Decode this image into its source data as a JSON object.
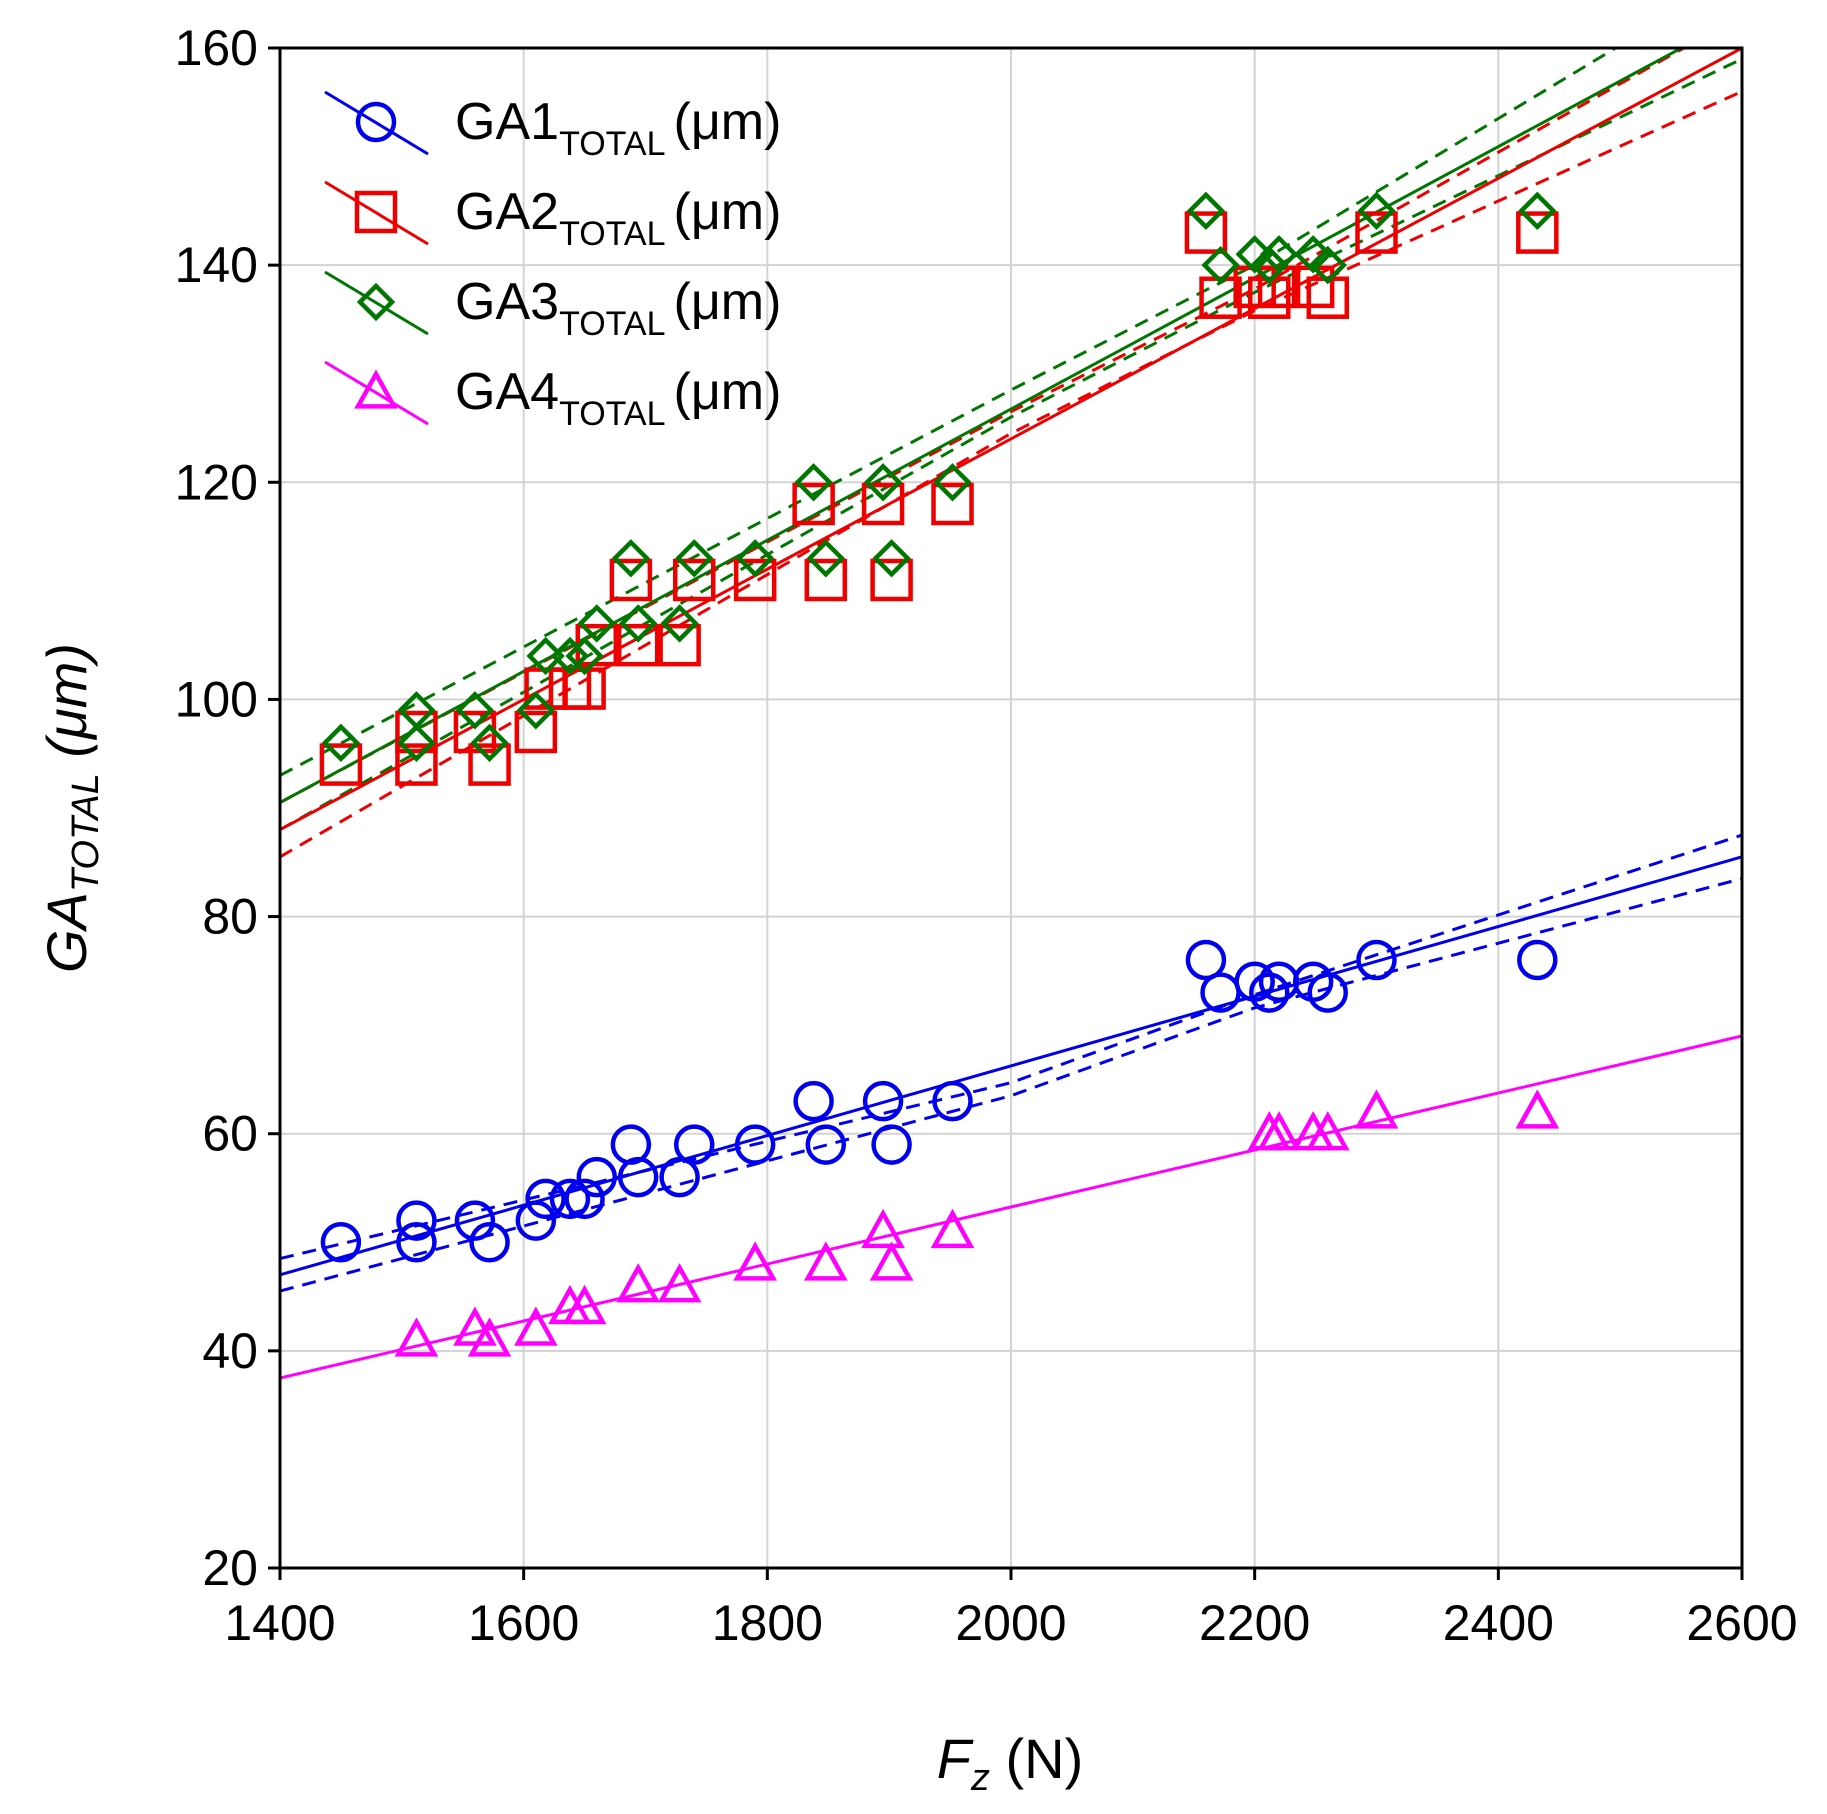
{
  "chart_data": {
    "type": "scatter",
    "xlabel": {
      "main": "F",
      "sub": "z",
      "unit": " (N)"
    },
    "ylabel": {
      "main": "GA",
      "sub": "TOTAL",
      "unit": " (μm)"
    },
    "xlim": [
      1400,
      2600
    ],
    "ylim": [
      20,
      160
    ],
    "xticks": [
      1400,
      1600,
      1800,
      2000,
      2200,
      2400,
      2600
    ],
    "yticks": [
      20,
      40,
      60,
      80,
      100,
      120,
      140,
      160
    ],
    "grid": true,
    "legend_position": "top-left",
    "series": [
      {
        "id": "ga1",
        "label_main": "GA1",
        "label_sub": "TOTAL",
        "label_unit": "(μm)",
        "marker": "circle",
        "color": "#0000ee",
        "fit": {
          "y_at_xmin": 47,
          "y_at_xmax": 85.5
        },
        "ci": true,
        "ci_lower": [
          [
            1400,
            45.5
          ],
          [
            2000,
            63.5
          ],
          [
            2200,
            71.6
          ],
          [
            2600,
            83.5
          ]
        ],
        "ci_upper": [
          [
            1400,
            48.5
          ],
          [
            2000,
            64.7
          ],
          [
            2200,
            72.8
          ],
          [
            2600,
            87.5
          ]
        ],
        "points": [
          [
            1450,
            50
          ],
          [
            1512,
            52
          ],
          [
            1512,
            50
          ],
          [
            1560,
            52
          ],
          [
            1572,
            50
          ],
          [
            1610,
            52
          ],
          [
            1618,
            54
          ],
          [
            1638,
            54
          ],
          [
            1650,
            54
          ],
          [
            1660,
            56
          ],
          [
            1688,
            59
          ],
          [
            1694,
            56
          ],
          [
            1728,
            56
          ],
          [
            1740,
            59
          ],
          [
            1790,
            59
          ],
          [
            1838,
            63
          ],
          [
            1848,
            59
          ],
          [
            1895,
            63
          ],
          [
            1902,
            59
          ],
          [
            1952,
            63
          ],
          [
            2160,
            76
          ],
          [
            2172,
            73
          ],
          [
            2200,
            74
          ],
          [
            2212,
            73
          ],
          [
            2220,
            74
          ],
          [
            2248,
            74
          ],
          [
            2260,
            73
          ],
          [
            2300,
            76
          ],
          [
            2432,
            76
          ]
        ]
      },
      {
        "id": "ga2",
        "label_main": "GA2",
        "label_sub": "TOTAL",
        "label_unit": "(μm)",
        "marker": "square",
        "color": "#ee0000",
        "fit": {
          "y_at_xmin": 88,
          "y_at_xmax": 160
        },
        "ci": true,
        "ci_lower": [
          [
            1400,
            85.5
          ],
          [
            2000,
            124.5
          ],
          [
            2200,
            135.8
          ],
          [
            2600,
            156
          ]
        ],
        "ci_upper": [
          [
            1400,
            90.5
          ],
          [
            2000,
            126.5
          ],
          [
            2200,
            137.8
          ],
          [
            2600,
            163
          ]
        ],
        "points": [
          [
            1450,
            94
          ],
          [
            1512,
            97
          ],
          [
            1512,
            94
          ],
          [
            1560,
            97
          ],
          [
            1572,
            94
          ],
          [
            1610,
            97
          ],
          [
            1618,
            101
          ],
          [
            1638,
            101
          ],
          [
            1650,
            101
          ],
          [
            1660,
            105
          ],
          [
            1688,
            111
          ],
          [
            1694,
            105
          ],
          [
            1728,
            105
          ],
          [
            1740,
            111
          ],
          [
            1790,
            111
          ],
          [
            1838,
            118
          ],
          [
            1848,
            111
          ],
          [
            1895,
            118
          ],
          [
            1902,
            111
          ],
          [
            1952,
            118
          ],
          [
            2160,
            143
          ],
          [
            2172,
            137
          ],
          [
            2200,
            138
          ],
          [
            2212,
            137
          ],
          [
            2220,
            138
          ],
          [
            2248,
            138
          ],
          [
            2260,
            137
          ],
          [
            2300,
            143
          ],
          [
            2432,
            143
          ]
        ]
      },
      {
        "id": "ga3",
        "label_main": "GA3",
        "label_sub": "TOTAL",
        "label_unit": "(μm)",
        "marker": "diamond",
        "color": "#007700",
        "fit": {
          "y_at_xmin": 90.5,
          "y_at_xmax": 163
        },
        "ci": true,
        "ci_lower": [
          [
            1400,
            88
          ],
          [
            2000,
            126
          ],
          [
            2200,
            137.5
          ],
          [
            2600,
            159
          ]
        ],
        "ci_upper": [
          [
            1400,
            93
          ],
          [
            2000,
            128.5
          ],
          [
            2200,
            140
          ],
          [
            2600,
            167
          ]
        ],
        "points": [
          [
            1450,
            96
          ],
          [
            1512,
            99
          ],
          [
            1512,
            96
          ],
          [
            1560,
            99
          ],
          [
            1572,
            96
          ],
          [
            1610,
            99
          ],
          [
            1618,
            104
          ],
          [
            1638,
            104
          ],
          [
            1650,
            104
          ],
          [
            1660,
            107
          ],
          [
            1688,
            113
          ],
          [
            1694,
            107
          ],
          [
            1728,
            107
          ],
          [
            1740,
            113
          ],
          [
            1790,
            113
          ],
          [
            1838,
            120
          ],
          [
            1848,
            113
          ],
          [
            1895,
            120
          ],
          [
            1902,
            113
          ],
          [
            1952,
            120
          ],
          [
            2160,
            145
          ],
          [
            2172,
            140
          ],
          [
            2200,
            141
          ],
          [
            2212,
            140
          ],
          [
            2220,
            141
          ],
          [
            2248,
            141
          ],
          [
            2260,
            140
          ],
          [
            2300,
            145
          ],
          [
            2432,
            145
          ]
        ]
      },
      {
        "id": "ga4",
        "label_main": "GA4",
        "label_sub": "TOTAL",
        "label_unit": "(μm)",
        "marker": "triangle",
        "color": "#ff00ff",
        "fit": {
          "y_at_xmin": 37.5,
          "y_at_xmax": 69
        },
        "ci": false,
        "points": [
          [
            1512,
            41
          ],
          [
            1560,
            42
          ],
          [
            1572,
            41
          ],
          [
            1610,
            42
          ],
          [
            1638,
            44
          ],
          [
            1650,
            44
          ],
          [
            1694,
            46
          ],
          [
            1728,
            46
          ],
          [
            1790,
            48
          ],
          [
            1848,
            48
          ],
          [
            1895,
            51
          ],
          [
            1902,
            48
          ],
          [
            1952,
            51
          ],
          [
            2212,
            60
          ],
          [
            2220,
            60
          ],
          [
            2248,
            60
          ],
          [
            2260,
            60
          ],
          [
            2300,
            62
          ],
          [
            2432,
            62
          ]
        ]
      }
    ]
  }
}
